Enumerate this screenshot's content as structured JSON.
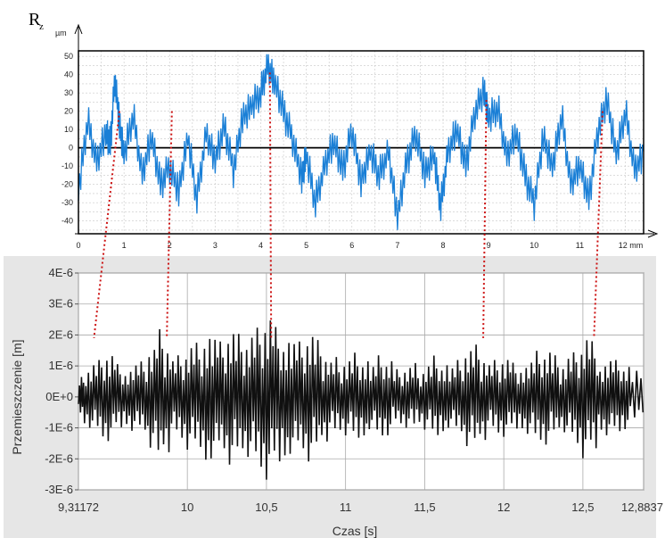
{
  "chart_data": [
    {
      "type": "line",
      "title": "R",
      "title_subscript": "z",
      "ylabel": "µm",
      "xunit": "mm",
      "xlim": [
        0,
        12.4
      ],
      "ylim": [
        -47,
        53
      ],
      "yticks": [
        "50",
        "40",
        "30",
        "20",
        "10",
        "0",
        "-10",
        "-20",
        "-30",
        "-40"
      ],
      "xticks": [
        "0",
        "1",
        "2",
        "3",
        "4",
        "5",
        "6",
        "7",
        "8",
        "9",
        "10",
        "11",
        "12 mm"
      ],
      "grid": true,
      "colors": {
        "series": "#1a7fd6",
        "zero_line": "#000000",
        "frame": "#000000"
      },
      "series": [
        {
          "x": [
            0,
            0.2,
            0.4,
            0.6,
            0.7,
            0.8,
            0.9,
            1.0,
            1.2,
            1.4,
            1.6,
            1.8,
            2.0,
            2.2,
            2.4,
            2.6,
            2.8,
            3.0,
            3.2,
            3.4,
            3.6,
            3.8,
            4.0,
            4.15,
            4.3,
            4.5,
            4.7,
            4.9,
            5.0,
            5.2,
            5.4,
            5.6,
            5.8,
            6.0,
            6.2,
            6.4,
            6.6,
            6.8,
            7.0,
            7.2,
            7.4,
            7.6,
            7.8,
            7.95,
            8.1,
            8.3,
            8.5,
            8.7,
            8.9,
            9.0,
            9.2,
            9.4,
            9.6,
            9.8,
            10.0,
            10.2,
            10.4,
            10.6,
            10.8,
            11.0,
            11.2,
            11.4,
            11.6,
            11.8,
            12.0,
            12.2,
            12.4
          ],
          "y": [
            -25,
            15,
            -8,
            10,
            2,
            38,
            12,
            -5,
            18,
            -15,
            8,
            -20,
            -10,
            -25,
            5,
            -28,
            8,
            -5,
            12,
            -12,
            15,
            22,
            30,
            45,
            38,
            20,
            5,
            -18,
            -5,
            -30,
            -10,
            5,
            -12,
            10,
            -20,
            -3,
            -15,
            -2,
            -36,
            -8,
            8,
            -15,
            -5,
            -32,
            -3,
            12,
            -10,
            20,
            30,
            15,
            22,
            -5,
            10,
            -15,
            -30,
            5,
            -12,
            18,
            -20,
            -8,
            -28,
            10,
            25,
            -5,
            20,
            -12,
            -2
          ]
        }
      ]
    },
    {
      "type": "line",
      "title": "",
      "xlabel": "Czas [s]",
      "ylabel": "Przemieszczenie [m]",
      "xlim": [
        9.31172,
        12.8837
      ],
      "ylim": [
        -3e-06,
        4e-06
      ],
      "yticks": [
        "4E-6",
        "3E-6",
        "2E-6",
        "1E-6",
        "0E+0",
        "-1E-6",
        "-2E-6",
        "-3E-6"
      ],
      "xticks": [
        "9,31172",
        "10",
        "10,5",
        "11",
        "11,5",
        "12",
        "12,5",
        "12,8837"
      ],
      "grid": true,
      "colors": {
        "series": "#101010",
        "grid": "#aaaaaa",
        "panel_bg": "#e6e6e6",
        "plot_bg": "#ffffff"
      },
      "series": [
        {
          "x": [
            9.312,
            9.35,
            9.4,
            9.45,
            9.5,
            9.55,
            9.6,
            9.65,
            9.7,
            9.75,
            9.8,
            9.85,
            9.9,
            9.95,
            10.0,
            10.05,
            10.1,
            10.15,
            10.2,
            10.25,
            10.3,
            10.35,
            10.4,
            10.45,
            10.5,
            10.55,
            10.6,
            10.65,
            10.7,
            10.75,
            10.8,
            10.85,
            10.9,
            10.95,
            11.0,
            11.05,
            11.1,
            11.15,
            11.2,
            11.25,
            11.3,
            11.35,
            11.4,
            11.45,
            11.5,
            11.55,
            11.6,
            11.65,
            11.7,
            11.75,
            11.8,
            11.85,
            11.9,
            11.95,
            12.0,
            12.05,
            12.1,
            12.15,
            12.2,
            12.25,
            12.3,
            12.35,
            12.4,
            12.45,
            12.5,
            12.55,
            12.6,
            12.65,
            12.7,
            12.75,
            12.8,
            12.88
          ],
          "y": [
            5e-07,
            -8e-07,
            1.2e-06,
            -1.2e-06,
            1.8e-06,
            -1.3e-06,
            1e-06,
            -9e-07,
            1.3e-06,
            -1e-06,
            2.3e-06,
            -2.1e-06,
            1.5e-06,
            -1.2e-06,
            1.9e-06,
            -1.8e-06,
            2e-06,
            -2.4e-06,
            1.6e-06,
            -2e-06,
            2.4e-06,
            -1.7e-06,
            2.2e-06,
            -2.3e-06,
            3e-06,
            -2.8e-06,
            2.1e-06,
            -2e-06,
            1.7e-06,
            -1.9e-06,
            2.3e-06,
            -1.4e-06,
            1.5e-06,
            -1.1e-06,
            1.4e-06,
            -1.3e-06,
            1.8e-06,
            -9e-07,
            1.2e-06,
            -1.5e-06,
            1e-06,
            -8e-07,
            1.2e-06,
            -1e-06,
            9e-07,
            -1.4e-06,
            1.5e-06,
            -9e-07,
            1.1e-06,
            -1.3e-06,
            1.9e-06,
            -1.5e-06,
            1.3e-06,
            -1.1e-06,
            1.6e-06,
            -1.2e-06,
            1.2e-06,
            -1e-06,
            1.4e-06,
            -1.6e-06,
            1.5e-06,
            -1.2e-06,
            1.1e-06,
            -1.8e-06,
            1.7e-06,
            -2.6e-06,
            1.3e-06,
            -1e-06,
            1.5e-06,
            -9e-07,
            1.2e-06,
            -5e-07
          ]
        }
      ]
    }
  ],
  "connectors": {
    "color": "#cc1111",
    "pairs": [
      {
        "top_x_mm": 0.9,
        "bottom_t_s": 9.41
      },
      {
        "top_x_mm": 2.05,
        "bottom_t_s": 9.87
      },
      {
        "top_x_mm": 4.2,
        "bottom_t_s": 10.53
      },
      {
        "top_x_mm": 8.95,
        "bottom_t_s": 11.87
      },
      {
        "top_x_mm": 11.5,
        "bottom_t_s": 12.57
      }
    ]
  }
}
